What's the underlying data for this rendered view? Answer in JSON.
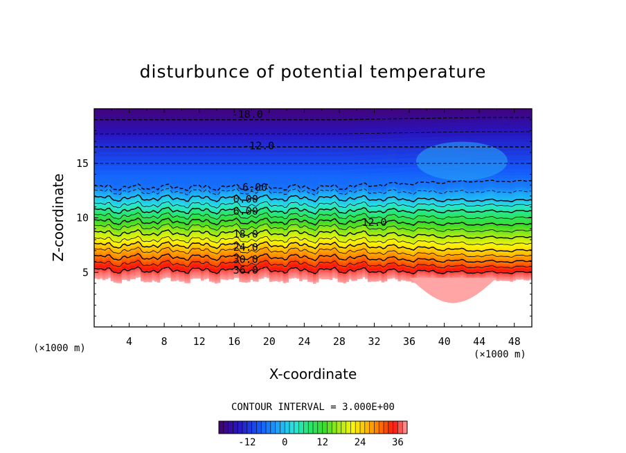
{
  "chart_data": {
    "type": "contour",
    "title": "disturbunce of potential temperature",
    "xlabel": "X-coordinate",
    "ylabel": "Z-coordinate",
    "x_unit": "(×1000 m)",
    "y_unit": "(×1000 m)",
    "xlim": [
      0,
      50
    ],
    "ylim": [
      0,
      20
    ],
    "x_ticks": [
      "4",
      "8",
      "12",
      "16",
      "20",
      "24",
      "28",
      "32",
      "36",
      "40",
      "44",
      "48"
    ],
    "y_ticks": [
      "5",
      "10",
      "15"
    ],
    "contour_interval_text": "CONTOUR INTERVAL = 3.000E+00",
    "contour_interval": 3.0,
    "value_range": [
      -21,
      39
    ],
    "contour_labels": [
      {
        "text": "-18.0",
        "x": 17.5,
        "z": 19.5
      },
      {
        "text": "-12.0",
        "x": 18.8,
        "z": 16.6
      },
      {
        "text": "-6.00",
        "x": 18.0,
        "z": 12.8
      },
      {
        "text": "0.00",
        "x": 17.3,
        "z": 11.7
      },
      {
        "text": "6.00",
        "x": 17.3,
        "z": 10.6
      },
      {
        "text": "12.0",
        "x": 32.0,
        "z": 9.6
      },
      {
        "text": "18.0",
        "x": 17.3,
        "z": 8.5
      },
      {
        "text": "24.0",
        "x": 17.3,
        "z": 7.3
      },
      {
        "text": "30.0",
        "x": 17.3,
        "z": 6.2
      },
      {
        "text": "36.0",
        "x": 17.3,
        "z": 5.2
      }
    ],
    "colorbar": {
      "ticks": [
        "-12",
        "0",
        "12",
        "24",
        "36"
      ],
      "tick_values": [
        -12,
        0,
        12,
        24,
        36
      ],
      "min": -21,
      "max": 39
    }
  }
}
